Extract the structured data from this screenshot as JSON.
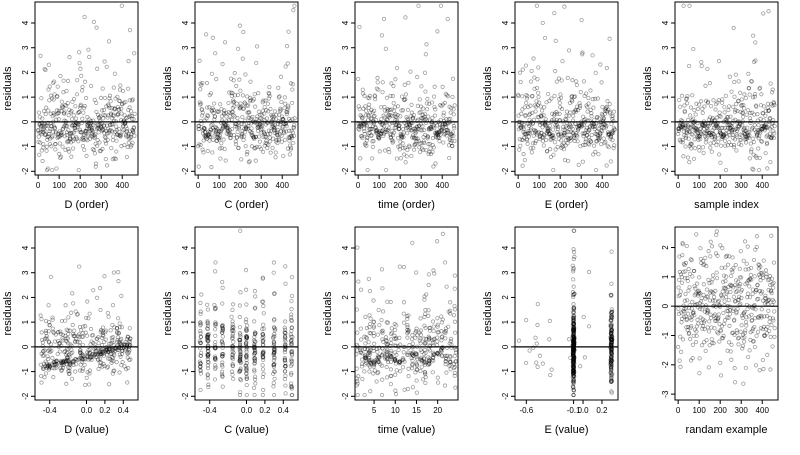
{
  "chart_data": [
    {
      "type": "scatter",
      "xlabel": "D (order)",
      "ylabel": "residuals",
      "xlim": [
        -15,
        475
      ],
      "ylim": [
        -2.15,
        4.85
      ],
      "xticks": [
        0,
        100,
        200,
        300,
        400
      ],
      "yticks": [
        -2,
        -1,
        0,
        1,
        2,
        3,
        4
      ],
      "yticklabels": [
        "-2",
        "-1",
        "0",
        "1",
        "2",
        "3",
        "4"
      ],
      "zero_line": true,
      "n_points": 460,
      "pattern": "order",
      "seed": 11
    },
    {
      "type": "scatter",
      "xlabel": "C (order)",
      "ylabel": "residuals",
      "xlim": [
        -15,
        475
      ],
      "ylim": [
        -2.15,
        4.85
      ],
      "xticks": [
        0,
        100,
        200,
        300,
        400
      ],
      "yticks": [
        -2,
        -1,
        0,
        1,
        2,
        3,
        4
      ],
      "yticklabels": [
        "-2",
        "-1",
        "0",
        "1",
        "2",
        "3",
        "4"
      ],
      "zero_line": true,
      "n_points": 460,
      "pattern": "order",
      "seed": 23
    },
    {
      "type": "scatter",
      "xlabel": "time (order)",
      "ylabel": "residuals",
      "xlim": [
        -15,
        475
      ],
      "ylim": [
        -2.15,
        4.85
      ],
      "xticks": [
        0,
        100,
        200,
        300,
        400
      ],
      "yticks": [
        -2,
        -1,
        0,
        1,
        2,
        3,
        4
      ],
      "yticklabels": [
        "-2",
        "-1",
        "0",
        "1",
        "2",
        "3",
        "4"
      ],
      "zero_line": true,
      "n_points": 460,
      "pattern": "order",
      "seed": 37
    },
    {
      "type": "scatter",
      "xlabel": "E (order)",
      "ylabel": "residuals",
      "xlim": [
        -15,
        475
      ],
      "ylim": [
        -2.15,
        4.85
      ],
      "xticks": [
        0,
        100,
        200,
        300,
        400
      ],
      "yticks": [
        -2,
        -1,
        0,
        1,
        2,
        3,
        4
      ],
      "yticklabels": [
        "-2",
        "-1",
        "0",
        "1",
        "2",
        "3",
        "4"
      ],
      "zero_line": true,
      "n_points": 460,
      "pattern": "order",
      "seed": 41
    },
    {
      "type": "scatter",
      "xlabel": "sample index",
      "ylabel": "residuals",
      "xlim": [
        -15,
        475
      ],
      "ylim": [
        -2.15,
        4.85
      ],
      "xticks": [
        0,
        100,
        200,
        300,
        400
      ],
      "yticks": [
        -2,
        -1,
        0,
        1,
        2,
        3,
        4
      ],
      "yticklabels": [
        "-2",
        "-1",
        "0",
        "1",
        "2",
        "3",
        "4"
      ],
      "zero_line": true,
      "n_points": 460,
      "pattern": "order",
      "seed": 53
    },
    {
      "type": "scatter",
      "xlabel": "D (value)",
      "ylabel": "residuals",
      "xlim": [
        -0.56,
        0.56
      ],
      "ylim": [
        -2.15,
        4.85
      ],
      "xticks": [
        -0.4,
        0.0,
        0.2,
        0.4
      ],
      "xticklabels": [
        "-0.4",
        "0.0",
        "0.2",
        "0.4"
      ],
      "yticks": [
        -2,
        -1,
        0,
        1,
        2,
        3,
        4
      ],
      "yticklabels": [
        "-2",
        "-1",
        "0",
        "1",
        "2",
        "3",
        "4"
      ],
      "zero_line": true,
      "n_points": 460,
      "pattern": "value_d",
      "seed": 61
    },
    {
      "type": "scatter",
      "xlabel": "C (value)",
      "ylabel": "residuals",
      "xlim": [
        -0.56,
        0.56
      ],
      "ylim": [
        -2.15,
        4.85
      ],
      "xticks": [
        -0.4,
        0.0,
        0.2,
        0.4
      ],
      "xticklabels": [
        "-0.4",
        "0.0",
        "0.2",
        "0.4"
      ],
      "yticks": [
        -2,
        -1,
        0,
        1,
        2,
        3,
        4
      ],
      "yticklabels": [
        "-2",
        "-1",
        "0",
        "1",
        "2",
        "3",
        "4"
      ],
      "zero_line": true,
      "n_points": 460,
      "pattern": "value_c",
      "seed": 73
    },
    {
      "type": "scatter",
      "xlabel": "time (value)",
      "ylabel": "residuals",
      "xlim": [
        0.5,
        24.8
      ],
      "ylim": [
        -2.15,
        4.85
      ],
      "xticks": [
        5,
        10,
        15,
        20
      ],
      "xticklabels": [
        "5",
        "10",
        "15",
        "20"
      ],
      "yticks": [
        -2,
        -1,
        0,
        1,
        2,
        3,
        4
      ],
      "yticklabels": [
        "-2",
        "-1",
        "0",
        "1",
        "2",
        "3",
        "4"
      ],
      "zero_line": true,
      "n_points": 460,
      "pattern": "value_time",
      "seed": 83
    },
    {
      "type": "scatter",
      "xlabel": "E (value)",
      "ylabel": "residuals",
      "xlim": [
        -0.72,
        0.37
      ],
      "ylim": [
        -2.15,
        4.85
      ],
      "xticks": [
        -0.6,
        -0.1,
        0.0,
        0.2
      ],
      "xticklabels": [
        "-0.6",
        "-0.1",
        "0.0",
        "0.2"
      ],
      "yticks": [
        -2,
        -1,
        0,
        1,
        2,
        3,
        4
      ],
      "yticklabels": [
        "-2",
        "-1",
        "0",
        "1",
        "2",
        "3",
        "4"
      ],
      "zero_line": true,
      "n_points": 460,
      "pattern": "value_e",
      "seed": 97
    },
    {
      "type": "scatter",
      "xlabel": "randam example",
      "ylabel": "residuals",
      "xlim": [
        -15,
        475
      ],
      "ylim": [
        -3.2,
        2.7
      ],
      "xticks": [
        0,
        100,
        200,
        300,
        400
      ],
      "yticks": [
        -3,
        -2,
        -1,
        0,
        1,
        2
      ],
      "yticklabels": [
        "-3",
        "-2",
        "-1",
        "0",
        "1",
        "2"
      ],
      "zero_line": true,
      "n_points": 460,
      "pattern": "random",
      "seed": 101
    }
  ]
}
